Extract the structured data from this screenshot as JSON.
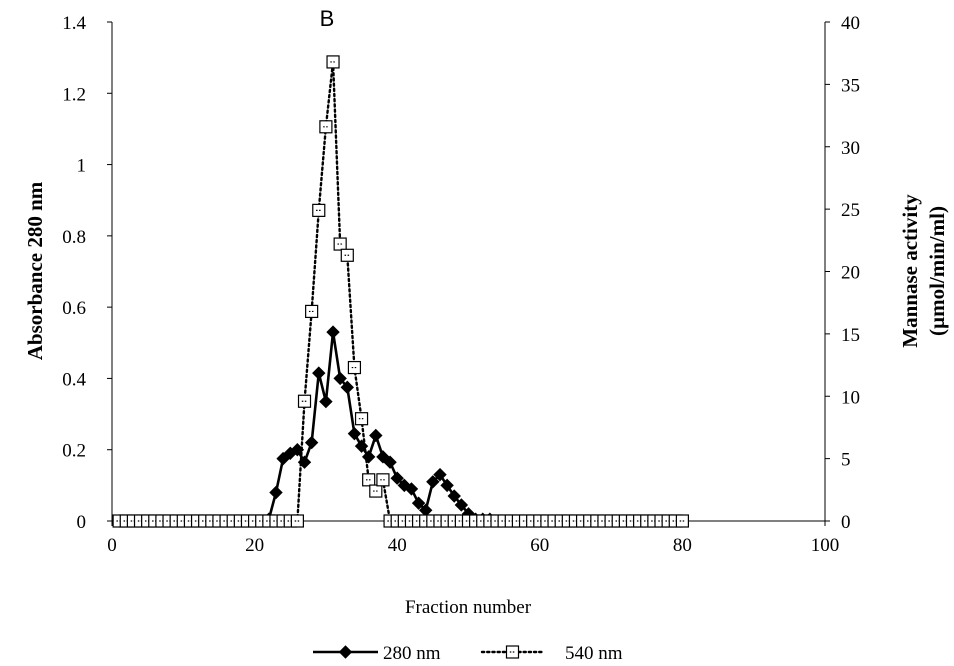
{
  "chart_data": {
    "type": "line",
    "title": "B",
    "xlabel": "Fraction number",
    "ylabel_left": "Absorbance 280 nm",
    "ylabel_right_line1": "Mannase activity",
    "ylabel_right_line2": "(µmol/min/ml)",
    "xlim": [
      0,
      100
    ],
    "ylim_left": [
      0,
      1.4
    ],
    "ylim_right": [
      0,
      40
    ],
    "x_ticks": [
      "0",
      "20",
      "40",
      "60",
      "80",
      "100"
    ],
    "y_left_ticks": [
      "0",
      "0.2",
      "0.4",
      "0.6",
      "0.8",
      "1",
      "1.2",
      "1.4"
    ],
    "y_right_ticks": [
      "0",
      "5",
      "10",
      "15",
      "20",
      "25",
      "30",
      "35",
      "40"
    ],
    "legend_position": "bottom",
    "series": [
      {
        "name": "280 nm",
        "axis": "left",
        "marker": "diamond",
        "line": "solid",
        "color": "#000000",
        "x": [
          1,
          2,
          3,
          4,
          5,
          6,
          7,
          8,
          9,
          10,
          11,
          12,
          13,
          14,
          15,
          16,
          17,
          18,
          19,
          20,
          21,
          22,
          23,
          24,
          25,
          26,
          27,
          28,
          29,
          30,
          31,
          32,
          33,
          34,
          35,
          36,
          37,
          38,
          39,
          40,
          41,
          42,
          43,
          44,
          45,
          46,
          47,
          48,
          49,
          50,
          51,
          52,
          53,
          54,
          55,
          56,
          57,
          58,
          59,
          60,
          61,
          62,
          63,
          64,
          65,
          66,
          67,
          68,
          69,
          70,
          71,
          72,
          73,
          74,
          75,
          76,
          77,
          78,
          79,
          80
        ],
        "values": [
          0,
          0,
          0,
          0,
          0,
          0,
          0,
          0,
          0,
          0,
          0,
          0,
          0,
          0,
          0,
          0,
          0,
          0,
          0,
          0,
          0,
          0.005,
          0.08,
          0.175,
          0.19,
          0.2,
          0.165,
          0.22,
          0.415,
          0.335,
          0.53,
          0.4,
          0.375,
          0.245,
          0.21,
          0.18,
          0.24,
          0.18,
          0.165,
          0.12,
          0.1,
          0.09,
          0.05,
          0.03,
          0.11,
          0.13,
          0.1,
          0.07,
          0.045,
          0.02,
          0.005,
          0.005,
          0.005,
          0,
          0,
          0,
          0,
          0,
          0,
          0,
          0,
          0,
          0,
          0,
          0,
          0,
          0,
          0,
          0,
          0,
          0,
          0,
          0,
          0,
          0,
          0,
          0,
          0,
          0,
          0
        ]
      },
      {
        "name": "540 nm",
        "axis": "right",
        "marker": "square-open",
        "line": "dotted",
        "color": "#000000",
        "x": [
          1,
          2,
          3,
          4,
          5,
          6,
          7,
          8,
          9,
          10,
          11,
          12,
          13,
          14,
          15,
          16,
          17,
          18,
          19,
          20,
          21,
          22,
          23,
          24,
          25,
          26,
          27,
          28,
          29,
          30,
          31,
          32,
          33,
          34,
          35,
          36,
          37,
          38,
          39,
          40,
          41,
          42,
          43,
          44,
          45,
          46,
          47,
          48,
          49,
          50,
          51,
          52,
          53,
          54,
          55,
          56,
          57,
          58,
          59,
          60,
          61,
          62,
          63,
          64,
          65,
          66,
          67,
          68,
          69,
          70,
          71,
          72,
          73,
          74,
          75,
          76,
          77,
          78,
          79,
          80
        ],
        "values": [
          0,
          0,
          0,
          0,
          0,
          0,
          0,
          0,
          0,
          0,
          0,
          0,
          0,
          0,
          0,
          0,
          0,
          0,
          0,
          0,
          0,
          0,
          0,
          0,
          0,
          0,
          9.6,
          16.8,
          24.9,
          31.6,
          36.8,
          22.2,
          21.3,
          12.3,
          8.2,
          3.3,
          2.4,
          3.3,
          0,
          0,
          0,
          0,
          0,
          0,
          0,
          0,
          0,
          0,
          0,
          0,
          0,
          0,
          0,
          0,
          0,
          0,
          0,
          0,
          0,
          0,
          0,
          0,
          0,
          0,
          0,
          0,
          0,
          0,
          0,
          0,
          0,
          0,
          0,
          0,
          0,
          0,
          0,
          0,
          0,
          0
        ]
      }
    ]
  }
}
